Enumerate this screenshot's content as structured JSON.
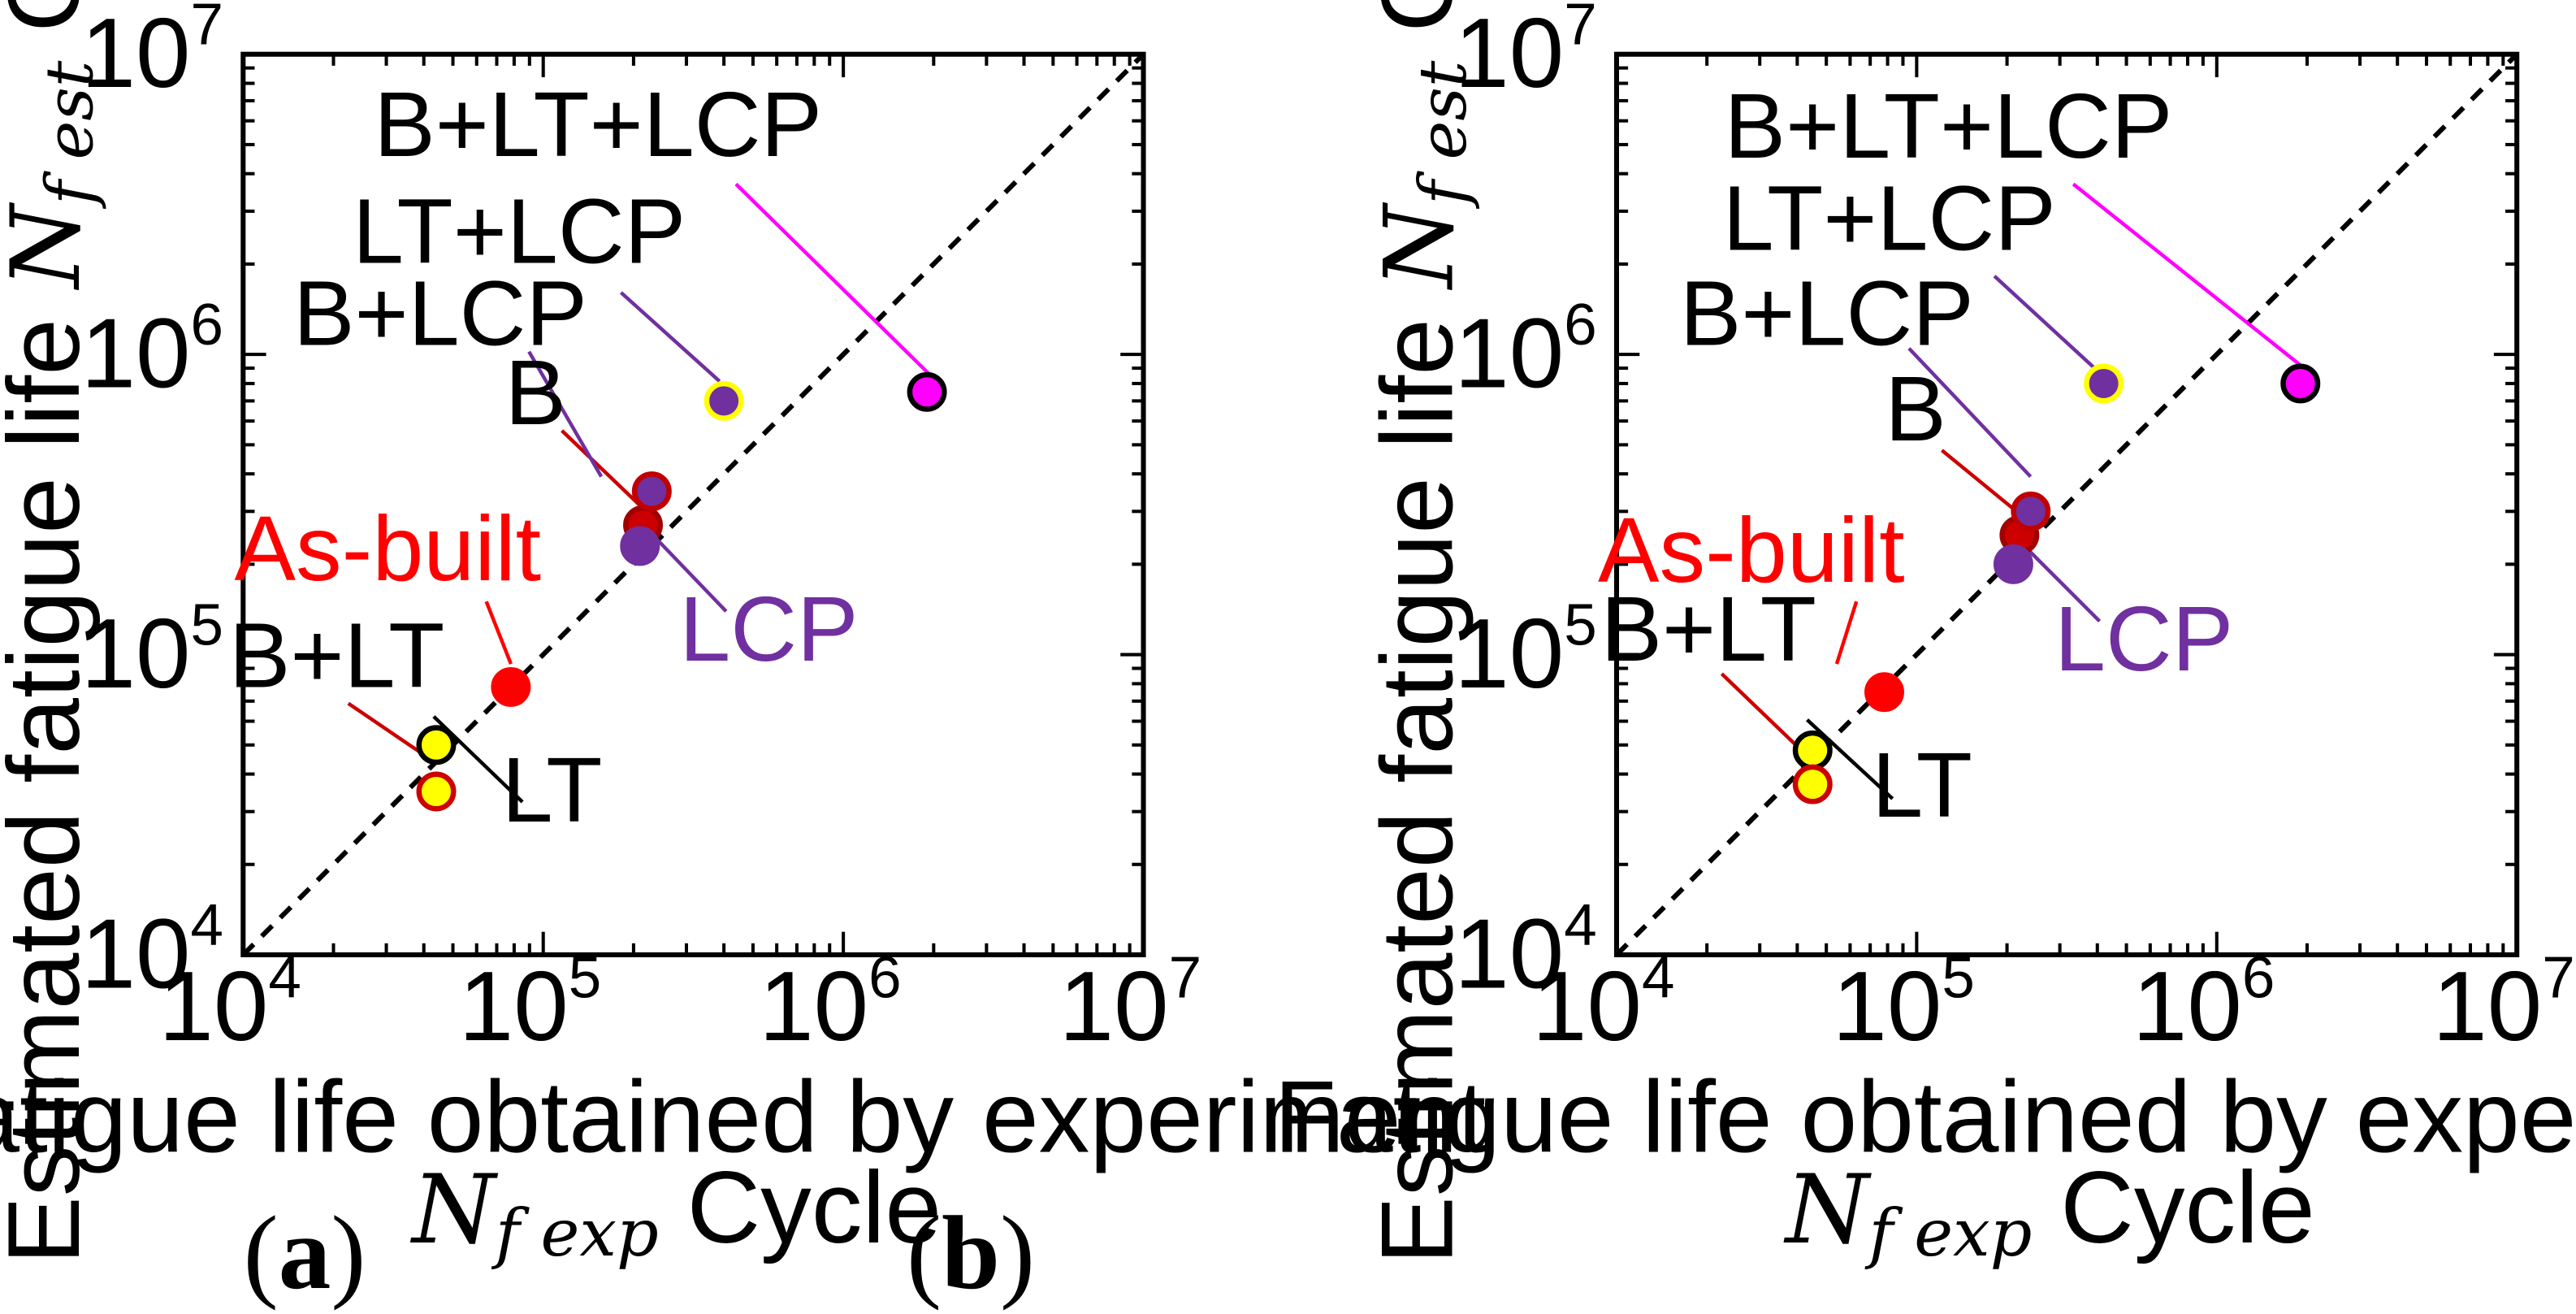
{
  "chart_data": [
    {
      "type": "scatter",
      "panel": "a",
      "caption": "a",
      "xlabel": "Fatigue life obtained by experiment",
      "xlabel_symbol": "N",
      "xlabel_subscript": "f exp",
      "xlabel_unit": "Cycle",
      "ylabel": "Estimated fatigue life",
      "ylabel_symbol": "N",
      "ylabel_subscript": "f est",
      "ylabel_unit": "Cycle",
      "xlim": [
        10000,
        10000000
      ],
      "ylim": [
        10000,
        10000000
      ],
      "scale": "log",
      "ticks": [
        {
          "base": "10",
          "exp": "4",
          "value": 10000
        },
        {
          "base": "10",
          "exp": "5",
          "value": 100000
        },
        {
          "base": "10",
          "exp": "6",
          "value": 1000000
        },
        {
          "base": "10",
          "exp": "7",
          "value": 10000000
        }
      ],
      "reference_line": "1:1",
      "points": [
        {
          "name": "As-built",
          "x": 78000,
          "y": 78000,
          "fill": "#ff0000",
          "stroke": "#ff0000",
          "label_color": "#ff0000",
          "leader_color": "#ff0000"
        },
        {
          "name": "B",
          "x": 215000,
          "y": 270000,
          "fill": "#cc0000",
          "stroke": "#a00000",
          "label_color": "#000000",
          "leader_color": "#cc0000"
        },
        {
          "name": "B+LCP",
          "x": 230000,
          "y": 350000,
          "fill": "#7030a0",
          "stroke": "#c00000",
          "label_color": "#000000",
          "leader_color": "#7030a0"
        },
        {
          "name": "LCP",
          "x": 210000,
          "y": 230000,
          "fill": "#7030a0",
          "stroke": "#7030a0",
          "label_color": "#7030a0",
          "leader_color": "#7030a0"
        },
        {
          "name": "LT+LCP",
          "x": 400000,
          "y": 700000,
          "fill": "#7030a0",
          "stroke": "#ffff00",
          "label_color": "#000000",
          "leader_color": "#7030a0"
        },
        {
          "name": "B+LT+LCP",
          "x": 1900000,
          "y": 750000,
          "fill": "#ff00ff",
          "stroke": "#000000",
          "label_color": "#000000",
          "leader_color": "#ff00ff"
        },
        {
          "name": "LT",
          "x": 44000,
          "y": 50000,
          "fill": "#ffff00",
          "stroke": "#000000",
          "label_color": "#000000",
          "leader_color": "#000000"
        },
        {
          "name": "B+LT",
          "x": 44000,
          "y": 35000,
          "fill": "#ffff00",
          "stroke": "#cc0000",
          "label_color": "#000000",
          "leader_color": "#cc0000"
        }
      ]
    },
    {
      "type": "scatter",
      "panel": "b",
      "caption": "b",
      "xlabel": "Fatigue life obtained by experiment",
      "xlabel_symbol": "N",
      "xlabel_subscript": "f exp",
      "xlabel_unit": "Cycle",
      "ylabel": "Estimated fatigue life",
      "ylabel_symbol": "N",
      "ylabel_subscript": "f est",
      "ylabel_unit": "Cycle",
      "xlim": [
        10000,
        10000000
      ],
      "ylim": [
        10000,
        10000000
      ],
      "scale": "log",
      "ticks": [
        {
          "base": "10",
          "exp": "4",
          "value": 10000
        },
        {
          "base": "10",
          "exp": "5",
          "value": 100000
        },
        {
          "base": "10",
          "exp": "6",
          "value": 1000000
        },
        {
          "base": "10",
          "exp": "7",
          "value": 10000000
        }
      ],
      "reference_line": "1:1",
      "points": [
        {
          "name": "As-built",
          "x": 78000,
          "y": 75000,
          "fill": "#ff0000",
          "stroke": "#ff0000",
          "label_color": "#ff0000",
          "leader_color": "#ff0000"
        },
        {
          "name": "B",
          "x": 220000,
          "y": 250000,
          "fill": "#cc0000",
          "stroke": "#a00000",
          "label_color": "#000000",
          "leader_color": "#cc0000"
        },
        {
          "name": "B+LCP",
          "x": 240000,
          "y": 300000,
          "fill": "#7030a0",
          "stroke": "#c00000",
          "label_color": "#000000",
          "leader_color": "#7030a0"
        },
        {
          "name": "LCP",
          "x": 210000,
          "y": 200000,
          "fill": "#7030a0",
          "stroke": "#7030a0",
          "label_color": "#7030a0",
          "leader_color": "#7030a0"
        },
        {
          "name": "LT+LCP",
          "x": 420000,
          "y": 800000,
          "fill": "#7030a0",
          "stroke": "#ffff00",
          "label_color": "#000000",
          "leader_color": "#7030a0"
        },
        {
          "name": "B+LT+LCP",
          "x": 1900000,
          "y": 800000,
          "fill": "#ff00ff",
          "stroke": "#000000",
          "label_color": "#000000",
          "leader_color": "#ff00ff"
        },
        {
          "name": "LT",
          "x": 45000,
          "y": 48000,
          "fill": "#ffff00",
          "stroke": "#000000",
          "label_color": "#000000",
          "leader_color": "#000000"
        },
        {
          "name": "B+LT",
          "x": 45000,
          "y": 37000,
          "fill": "#ffff00",
          "stroke": "#cc0000",
          "label_color": "#000000",
          "leader_color": "#cc0000"
        }
      ]
    }
  ]
}
